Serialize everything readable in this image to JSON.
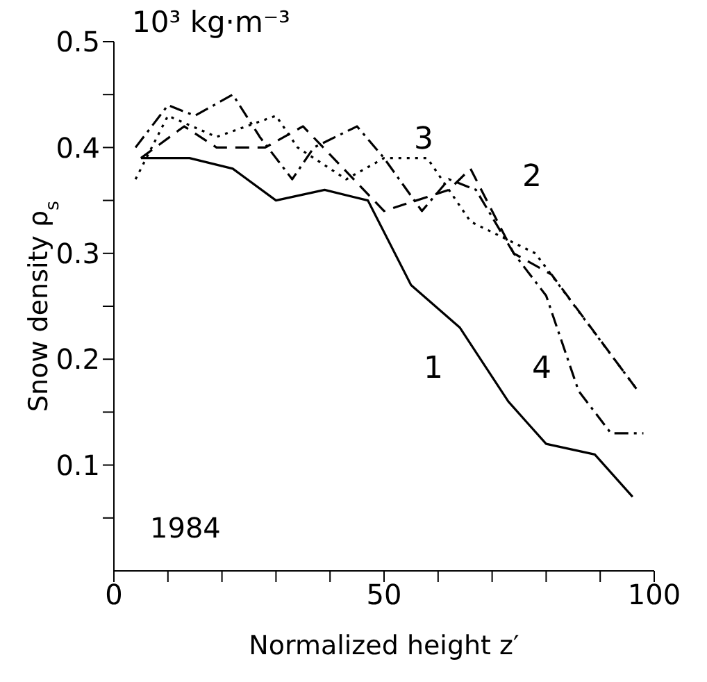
{
  "chart_data": {
    "type": "line",
    "xlabel": "Normalized height z′",
    "ylabel": "Snow density ρ$_{s}$",
    "xlim": [
      0,
      100
    ],
    "ylim": [
      0,
      0.5
    ],
    "xticks": [
      0,
      {
        "value": 10,
        "label": null
      },
      {
        "value": 20,
        "label": null
      },
      {
        "value": 30,
        "label": null
      },
      {
        "value": 40,
        "label": null
      },
      50,
      {
        "value": 60,
        "label": null
      },
      {
        "value": 70,
        "label": null
      },
      {
        "value": 80,
        "label": null
      },
      {
        "value": 90,
        "label": null
      },
      100
    ],
    "yticks": [
      {
        "value": 0.05,
        "label": null
      },
      0.1,
      {
        "value": 0.15,
        "label": null
      },
      0.2,
      {
        "value": 0.25,
        "label": null
      },
      0.3,
      {
        "value": 0.35,
        "label": null
      },
      0.4,
      {
        "value": 0.45,
        "label": null
      },
      0.5
    ],
    "grid": false,
    "legend": false,
    "marker": "none",
    "series": [
      {
        "color": "#000000",
        "line_style": "solid",
        "x": [
          5,
          14,
          22,
          30,
          39,
          47,
          55,
          64,
          73,
          80,
          89,
          96
        ],
        "values": [
          0.39,
          0.39,
          0.38,
          0.35,
          0.36,
          0.35,
          0.27,
          0.23,
          0.16,
          0.12,
          0.11,
          0.07
        ]
      },
      {
        "color": "#000000",
        "line_style": "dashed",
        "x": [
          5,
          13,
          19,
          28,
          35,
          50,
          62,
          66,
          74,
          81,
          97
        ],
        "values": [
          0.39,
          0.42,
          0.4,
          0.4,
          0.42,
          0.34,
          0.36,
          0.38,
          0.3,
          0.28,
          0.17
        ]
      },
      {
        "color": "#000000",
        "line_style": "dotted",
        "x": [
          4,
          10,
          19,
          30,
          34,
          43,
          50,
          58,
          66,
          78,
          97
        ],
        "values": [
          0.37,
          0.43,
          0.41,
          0.43,
          0.4,
          0.37,
          0.39,
          0.39,
          0.33,
          0.3,
          0.17
        ]
      },
      {
        "color": "#000000",
        "line_style": "dashdot",
        "x": [
          4,
          10,
          15,
          22,
          27,
          33,
          37,
          45,
          50,
          57,
          62,
          67,
          74,
          80,
          86,
          92,
          98
        ],
        "values": [
          0.4,
          0.44,
          0.43,
          0.45,
          0.41,
          0.37,
          0.4,
          0.42,
          0.39,
          0.34,
          0.37,
          0.36,
          0.3,
          0.26,
          0.17,
          0.13,
          0.13
        ]
      }
    ],
    "annotations": [
      "10³ kg·m⁻³",
      "1984",
      "1",
      "2",
      "3",
      "4"
    ]
  }
}
